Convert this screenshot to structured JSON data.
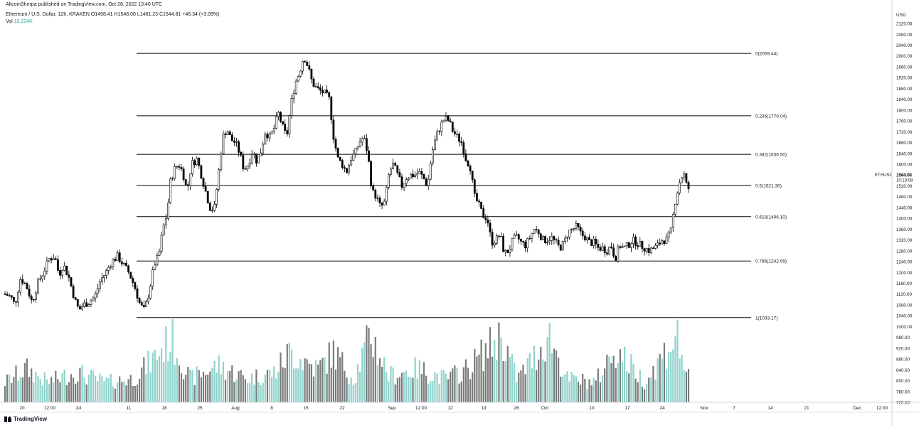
{
  "header": {
    "published": "AltcoinSherpa published on TradingView.com, Oct 28, 2022 13:40 UTC",
    "symbol_line": "Ethereum / U.S. Dollar, 12h, KRAKEN  O1498.41  H1548.00  L1481.23  C1544.81  +46.34 (+3.09%)",
    "vol_label": "Vol",
    "vol_value": "10.224K"
  },
  "price_axis": {
    "currency": "USD",
    "ticks": [
      "2160.00",
      "2120.00",
      "2080.00",
      "2040.00",
      "2000.00",
      "1960.00",
      "1920.00",
      "1880.00",
      "1840.00",
      "1800.00",
      "1760.00",
      "1720.00",
      "1680.00",
      "1640.00",
      "1600.00",
      "1560.00",
      "1520.00",
      "1480.00",
      "1440.00",
      "1400.00",
      "1360.00",
      "1320.00",
      "1280.00",
      "1240.00",
      "1200.00",
      "1160.00",
      "1120.00",
      "1080.00",
      "1040.00",
      "1000.00",
      "960.00",
      "920.00",
      "880.00",
      "840.00",
      "800.00",
      "760.00",
      "720.00"
    ],
    "last_symbol": "ETHUSD",
    "last_price": "1544.81",
    "last_countdown": "10:19:08"
  },
  "time_axis": {
    "labels": [
      "20",
      "12:00",
      "Jul",
      "11",
      "18",
      "25",
      "Aug",
      "8",
      "15",
      "22",
      "Sep",
      "12:00",
      "12",
      "19",
      "26",
      "Oct",
      "10",
      "17",
      "24",
      "Nov",
      "7",
      "14",
      "21",
      "Dec",
      "12:00"
    ]
  },
  "footer": {
    "logo_text": "TradingView"
  },
  "chart_data": {
    "type": "candlestick",
    "symbol": "ETHUSD",
    "interval": "12h",
    "ylim": [
      720,
      2170
    ],
    "fib_levels": [
      {
        "ratio": 0,
        "price": 2009.44,
        "label": "0(2009.44)"
      },
      {
        "ratio": 0.236,
        "price": 1779.04,
        "label": "0.236(1779.04)"
      },
      {
        "ratio": 0.382,
        "price": 1636.5,
        "label": "0.382(1636.50)"
      },
      {
        "ratio": 0.5,
        "price": 1521.3,
        "label": "0.5(1521.30)"
      },
      {
        "ratio": 0.618,
        "price": 1406.1,
        "label": "0.618(1406.10)"
      },
      {
        "ratio": 0.786,
        "price": 1242.09,
        "label": "0.786(1242.09)"
      },
      {
        "ratio": 1,
        "price": 1033.17,
        "label": "1(1033.17)"
      }
    ],
    "close_path": [
      [
        0,
        1120
      ],
      [
        8,
        1110
      ],
      [
        14,
        1080
      ],
      [
        22,
        1180
      ],
      [
        30,
        1150
      ],
      [
        38,
        1090
      ],
      [
        46,
        1160
      ],
      [
        54,
        1200
      ],
      [
        62,
        1250
      ],
      [
        70,
        1260
      ],
      [
        76,
        1190
      ],
      [
        82,
        1230
      ],
      [
        90,
        1180
      ],
      [
        98,
        1100
      ],
      [
        104,
        1060
      ],
      [
        110,
        1080
      ],
      [
        118,
        1090
      ],
      [
        126,
        1110
      ],
      [
        134,
        1170
      ],
      [
        142,
        1200
      ],
      [
        150,
        1240
      ],
      [
        158,
        1260
      ],
      [
        166,
        1230
      ],
      [
        174,
        1200
      ],
      [
        182,
        1150
      ],
      [
        190,
        1080
      ],
      [
        196,
        1060
      ],
      [
        202,
        1120
      ],
      [
        210,
        1230
      ],
      [
        216,
        1260
      ],
      [
        222,
        1360
      ],
      [
        228,
        1420
      ],
      [
        232,
        1530
      ],
      [
        238,
        1580
      ],
      [
        244,
        1600
      ],
      [
        250,
        1570
      ],
      [
        256,
        1500
      ],
      [
        262,
        1600
      ],
      [
        270,
        1620
      ],
      [
        276,
        1560
      ],
      [
        282,
        1500
      ],
      [
        288,
        1440
      ],
      [
        294,
        1430
      ],
      [
        300,
        1560
      ],
      [
        306,
        1700
      ],
      [
        312,
        1730
      ],
      [
        318,
        1690
      ],
      [
        324,
        1680
      ],
      [
        330,
        1640
      ],
      [
        336,
        1580
      ],
      [
        342,
        1600
      ],
      [
        348,
        1650
      ],
      [
        354,
        1610
      ],
      [
        360,
        1650
      ],
      [
        366,
        1720
      ],
      [
        372,
        1700
      ],
      [
        378,
        1730
      ],
      [
        384,
        1790
      ],
      [
        390,
        1740
      ],
      [
        396,
        1700
      ],
      [
        402,
        1820
      ],
      [
        408,
        1900
      ],
      [
        414,
        1940
      ],
      [
        420,
        2000
      ],
      [
        426,
        1960
      ],
      [
        432,
        1900
      ],
      [
        438,
        1880
      ],
      [
        444,
        1870
      ],
      [
        450,
        1860
      ],
      [
        456,
        1840
      ],
      [
        462,
        1700
      ],
      [
        468,
        1620
      ],
      [
        474,
        1600
      ],
      [
        480,
        1570
      ],
      [
        486,
        1620
      ],
      [
        492,
        1640
      ],
      [
        498,
        1680
      ],
      [
        504,
        1700
      ],
      [
        510,
        1640
      ],
      [
        516,
        1500
      ],
      [
        522,
        1480
      ],
      [
        528,
        1440
      ],
      [
        534,
        1460
      ],
      [
        540,
        1570
      ],
      [
        546,
        1600
      ],
      [
        552,
        1560
      ],
      [
        558,
        1520
      ],
      [
        564,
        1550
      ],
      [
        570,
        1560
      ],
      [
        576,
        1560
      ],
      [
        582,
        1570
      ],
      [
        588,
        1550
      ],
      [
        594,
        1520
      ],
      [
        600,
        1640
      ],
      [
        606,
        1700
      ],
      [
        612,
        1740
      ],
      [
        618,
        1770
      ],
      [
        624,
        1760
      ],
      [
        630,
        1720
      ],
      [
        636,
        1700
      ],
      [
        642,
        1680
      ],
      [
        648,
        1620
      ],
      [
        654,
        1590
      ],
      [
        660,
        1480
      ],
      [
        666,
        1450
      ],
      [
        672,
        1410
      ],
      [
        678,
        1400
      ],
      [
        684,
        1310
      ],
      [
        690,
        1320
      ],
      [
        696,
        1340
      ],
      [
        702,
        1270
      ],
      [
        708,
        1280
      ],
      [
        714,
        1320
      ],
      [
        720,
        1330
      ],
      [
        726,
        1310
      ],
      [
        732,
        1300
      ],
      [
        738,
        1330
      ],
      [
        744,
        1360
      ],
      [
        750,
        1350
      ],
      [
        756,
        1320
      ],
      [
        762,
        1320
      ],
      [
        768,
        1330
      ],
      [
        774,
        1310
      ],
      [
        780,
        1290
      ],
      [
        786,
        1310
      ],
      [
        792,
        1350
      ],
      [
        798,
        1360
      ],
      [
        804,
        1370
      ],
      [
        810,
        1340
      ],
      [
        816,
        1330
      ],
      [
        822,
        1310
      ],
      [
        828,
        1310
      ],
      [
        834,
        1290
      ],
      [
        840,
        1290
      ],
      [
        846,
        1280
      ],
      [
        852,
        1300
      ],
      [
        858,
        1250
      ],
      [
        864,
        1300
      ],
      [
        870,
        1290
      ],
      [
        876,
        1300
      ],
      [
        882,
        1320
      ],
      [
        888,
        1310
      ],
      [
        894,
        1300
      ],
      [
        900,
        1290
      ],
      [
        906,
        1280
      ],
      [
        912,
        1290
      ],
      [
        918,
        1300
      ],
      [
        924,
        1320
      ],
      [
        930,
        1320
      ],
      [
        936,
        1350
      ],
      [
        942,
        1460
      ],
      [
        948,
        1530
      ],
      [
        954,
        1570
      ],
      [
        960,
        1500
      ],
      [
        964,
        1540
      ]
    ],
    "volume_path": [
      [
        0,
        0.3
      ],
      [
        30,
        0.5
      ],
      [
        60,
        0.3
      ],
      [
        100,
        0.45
      ],
      [
        140,
        0.3
      ],
      [
        180,
        0.35
      ],
      [
        200,
        0.55
      ],
      [
        234,
        0.95
      ],
      [
        260,
        0.35
      ],
      [
        300,
        0.55
      ],
      [
        340,
        0.35
      ],
      [
        380,
        0.45
      ],
      [
        400,
        0.75
      ],
      [
        440,
        0.5
      ],
      [
        462,
        0.75
      ],
      [
        490,
        0.35
      ],
      [
        514,
        1.0
      ],
      [
        540,
        0.4
      ],
      [
        580,
        0.5
      ],
      [
        620,
        0.35
      ],
      [
        650,
        0.5
      ],
      [
        698,
        1.0
      ],
      [
        720,
        0.35
      ],
      [
        746,
        0.7
      ],
      [
        765,
        1.0
      ],
      [
        790,
        0.35
      ],
      [
        830,
        0.3
      ],
      [
        858,
        0.8
      ],
      [
        900,
        0.3
      ],
      [
        944,
        1.0
      ],
      [
        964,
        0.25
      ]
    ]
  }
}
